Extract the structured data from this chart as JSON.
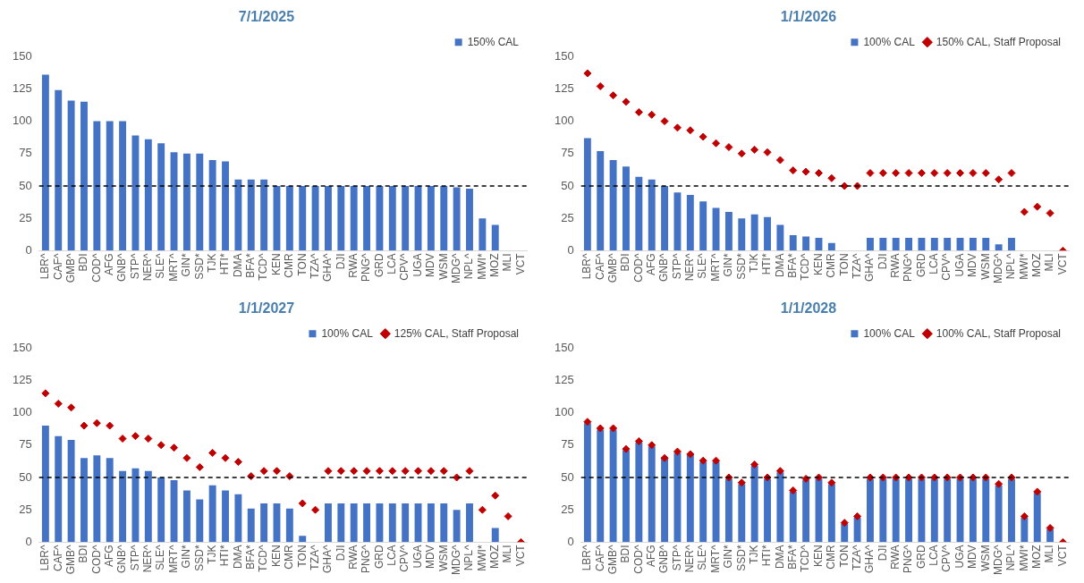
{
  "chart_data": [
    {
      "type": "bar",
      "title": "7/1/2025",
      "categories": [
        "LBR^",
        "CAF^",
        "GMB^",
        "BDI",
        "COD^",
        "AFG",
        "GNB^",
        "STP^",
        "NER^",
        "SLE^",
        "MRT^",
        "GIN*",
        "SSD*",
        "TJK",
        "HTI*",
        "DMA",
        "BFA*",
        "TCD^",
        "KEN",
        "CMR",
        "TON",
        "TZA^",
        "GHA^",
        "DJI",
        "RWA",
        "PNG^",
        "GRD",
        "LCA",
        "CPV^",
        "UGA",
        "MDV",
        "WSM",
        "MDG^",
        "NPL^",
        "MWI*",
        "MOZ",
        "MLI",
        "VCT"
      ],
      "series": [
        {
          "name": "150% CAL",
          "color": "#4472c4",
          "values": [
            136,
            124,
            116,
            115,
            100,
            100,
            100,
            89,
            86,
            83,
            76,
            75,
            75,
            70,
            69,
            55,
            55,
            55,
            50,
            50,
            50,
            50,
            50,
            50,
            50,
            50,
            50,
            50,
            50,
            50,
            50,
            50,
            49,
            48,
            25,
            20,
            null,
            null
          ]
        }
      ],
      "ylim": [
        0,
        150
      ],
      "yticks": [
        0,
        25,
        50,
        75,
        100,
        125,
        150
      ],
      "ref_lines": [
        {
          "axis": "y",
          "value": 50,
          "color": "#000000",
          "line_style": "dashed"
        }
      ],
      "legend": "top right",
      "grid": false
    },
    {
      "type": "bar",
      "title": "1/1/2026",
      "categories": [
        "LBR^",
        "CAF^",
        "GMB^",
        "BDI",
        "COD^",
        "AFG",
        "GNB^",
        "STP^",
        "NER^",
        "SLE^",
        "MRT^",
        "GIN*",
        "SSD*",
        "TJK",
        "HTI*",
        "DMA",
        "BFA*",
        "TCD^",
        "KEN",
        "CMR",
        "TON",
        "TZA^",
        "GHA^",
        "DJI",
        "RWA",
        "PNG^",
        "GRD",
        "LCA",
        "CPV^",
        "UGA",
        "MDV",
        "WSM",
        "MDG^",
        "NPL^",
        "MWI*",
        "MOZ",
        "MLI",
        "VCT"
      ],
      "series": [
        {
          "name": "100% CAL",
          "color": "#4472c4",
          "values": [
            87,
            77,
            70,
            65,
            57,
            55,
            50,
            45,
            43,
            38,
            33,
            30,
            25,
            28,
            26,
            20,
            12,
            11,
            10,
            6,
            null,
            null,
            10,
            10,
            10,
            10,
            10,
            10,
            10,
            10,
            10,
            10,
            5,
            10,
            null,
            null,
            null,
            null
          ]
        },
        {
          "name": "150% CAL, Staff Proposal",
          "type": "scatter",
          "color": "#c00000",
          "values": [
            137,
            127,
            120,
            115,
            107,
            105,
            100,
            95,
            93,
            88,
            83,
            80,
            75,
            78,
            76,
            70,
            62,
            61,
            60,
            56,
            50,
            50,
            60,
            60,
            60,
            60,
            60,
            60,
            60,
            60,
            60,
            60,
            55,
            60,
            30,
            34,
            29,
            0
          ]
        }
      ],
      "ylim": [
        0,
        150
      ],
      "yticks": [
        0,
        25,
        50,
        75,
        100,
        125,
        150
      ],
      "ref_lines": [
        {
          "axis": "y",
          "value": 50,
          "color": "#000000",
          "line_style": "dashed"
        }
      ],
      "legend": "top right",
      "grid": false,
      "marker": "diamond"
    },
    {
      "type": "bar",
      "title": "1/1/2027",
      "categories": [
        "LBR^",
        "CAF^",
        "GMB^",
        "BDI",
        "COD^",
        "AFG",
        "GNB^",
        "STP^",
        "NER^",
        "SLE^",
        "MRT^",
        "GIN*",
        "SSD*",
        "TJK",
        "HTI*",
        "DMA",
        "BFA*",
        "TCD^",
        "KEN",
        "CMR",
        "TON",
        "TZA^",
        "GHA^",
        "DJI",
        "RWA",
        "PNG^",
        "GRD",
        "LCA",
        "CPV^",
        "UGA",
        "MDV",
        "WSM",
        "MDG^",
        "NPL^",
        "MWI*",
        "MOZ",
        "MLI",
        "VCT"
      ],
      "series": [
        {
          "name": "100% CAL",
          "color": "#4472c4",
          "values": [
            90,
            82,
            79,
            65,
            67,
            65,
            55,
            57,
            55,
            50,
            48,
            40,
            33,
            44,
            40,
            37,
            26,
            30,
            30,
            26,
            5,
            null,
            30,
            30,
            30,
            30,
            30,
            30,
            30,
            30,
            30,
            30,
            25,
            30,
            null,
            11,
            null,
            null
          ]
        },
        {
          "name": "125% CAL, Staff Proposal",
          "type": "scatter",
          "color": "#c00000",
          "values": [
            115,
            107,
            104,
            90,
            92,
            90,
            80,
            82,
            80,
            75,
            73,
            65,
            58,
            69,
            65,
            62,
            51,
            55,
            55,
            51,
            30,
            25,
            55,
            55,
            55,
            55,
            55,
            55,
            55,
            55,
            55,
            55,
            50,
            55,
            25,
            36,
            20,
            0
          ]
        }
      ],
      "ylim": [
        0,
        150
      ],
      "yticks": [
        0,
        25,
        50,
        75,
        100,
        125,
        150
      ],
      "ref_lines": [
        {
          "axis": "y",
          "value": 50,
          "color": "#000000",
          "line_style": "dashed"
        }
      ],
      "legend": "top right",
      "grid": false,
      "marker": "diamond"
    },
    {
      "type": "bar",
      "title": "1/1/2028",
      "categories": [
        "LBR^",
        "CAF^",
        "GMB^",
        "BDI",
        "COD^",
        "AFG",
        "GNB^",
        "STP^",
        "NER^",
        "SLE^",
        "MRT^",
        "GIN*",
        "SSD*",
        "TJK",
        "HTI*",
        "DMA",
        "BFA*",
        "TCD^",
        "KEN",
        "CMR",
        "TON",
        "TZA^",
        "GHA^",
        "DJI",
        "RWA",
        "PNG^",
        "GRD",
        "LCA",
        "CPV^",
        "UGA",
        "MDV",
        "WSM",
        "MDG^",
        "NPL^",
        "MWI*",
        "MOZ",
        "MLI",
        "VCT"
      ],
      "series": [
        {
          "name": "100% CAL",
          "color": "#4472c4",
          "values": [
            92,
            87,
            87,
            71,
            77,
            74,
            65,
            69,
            68,
            62,
            62,
            49,
            45,
            59,
            49,
            54,
            39,
            48,
            49,
            45,
            14,
            19,
            49,
            49,
            49,
            49,
            49,
            49,
            49,
            49,
            49,
            49,
            44,
            49,
            19,
            38,
            10,
            0
          ]
        },
        {
          "name": "100% CAL, Staff Proposal",
          "type": "scatter",
          "color": "#c00000",
          "values": [
            93,
            88,
            88,
            72,
            78,
            75,
            65,
            70,
            68,
            63,
            63,
            50,
            46,
            60,
            50,
            55,
            40,
            49,
            50,
            46,
            15,
            20,
            50,
            50,
            50,
            50,
            50,
            50,
            50,
            50,
            50,
            50,
            45,
            50,
            20,
            39,
            11,
            0
          ]
        }
      ],
      "ylim": [
        0,
        150
      ],
      "yticks": [
        0,
        25,
        50,
        75,
        100,
        125,
        150
      ],
      "ref_lines": [
        {
          "axis": "y",
          "value": 50,
          "color": "#000000",
          "line_style": "dashed"
        }
      ],
      "legend": "top right",
      "grid": false,
      "marker": "diamond"
    }
  ]
}
